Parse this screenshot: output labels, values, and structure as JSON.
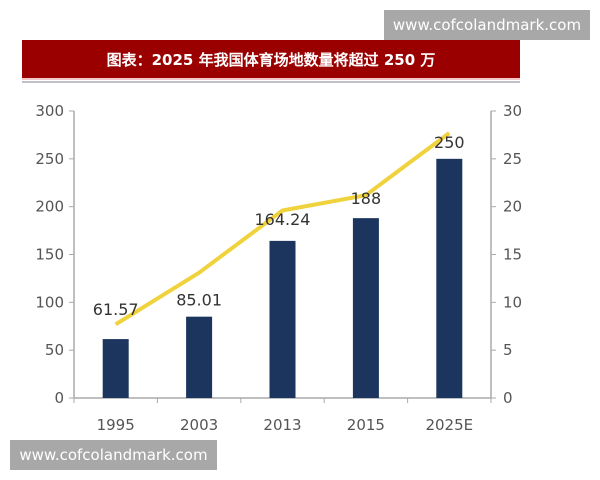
{
  "watermark_top": "www.cofcolandmark.com",
  "watermark_bottom": "www.cofcolandmark.com",
  "chart_data": {
    "type": "bar",
    "title": "图表：2025 年我国体育场地数量将超过 250 万",
    "categories": [
      "1995",
      "2003",
      "2013",
      "2015",
      "2025E"
    ],
    "series": [
      {
        "type": "bar",
        "axis": "left",
        "values": [
          61.57,
          85.01,
          164.24,
          188,
          250
        ],
        "data_labels": [
          "61.57",
          "85.01",
          "164.24",
          "188",
          "250"
        ],
        "color": "#1b355e"
      },
      {
        "type": "line",
        "axis": "right",
        "values": [
          7.7,
          13.1,
          19.6,
          21.2,
          27.7
        ],
        "color": "#f0d23c"
      }
    ],
    "ylim": [
      0,
      300
    ],
    "yticks": [
      "0",
      "50",
      "100",
      "150",
      "200",
      "250",
      "300"
    ],
    "y2lim": [
      0,
      30
    ],
    "y2ticks": [
      "0",
      "5",
      "10",
      "15",
      "20",
      "25",
      "30"
    ],
    "grid": false,
    "legend": "none"
  }
}
